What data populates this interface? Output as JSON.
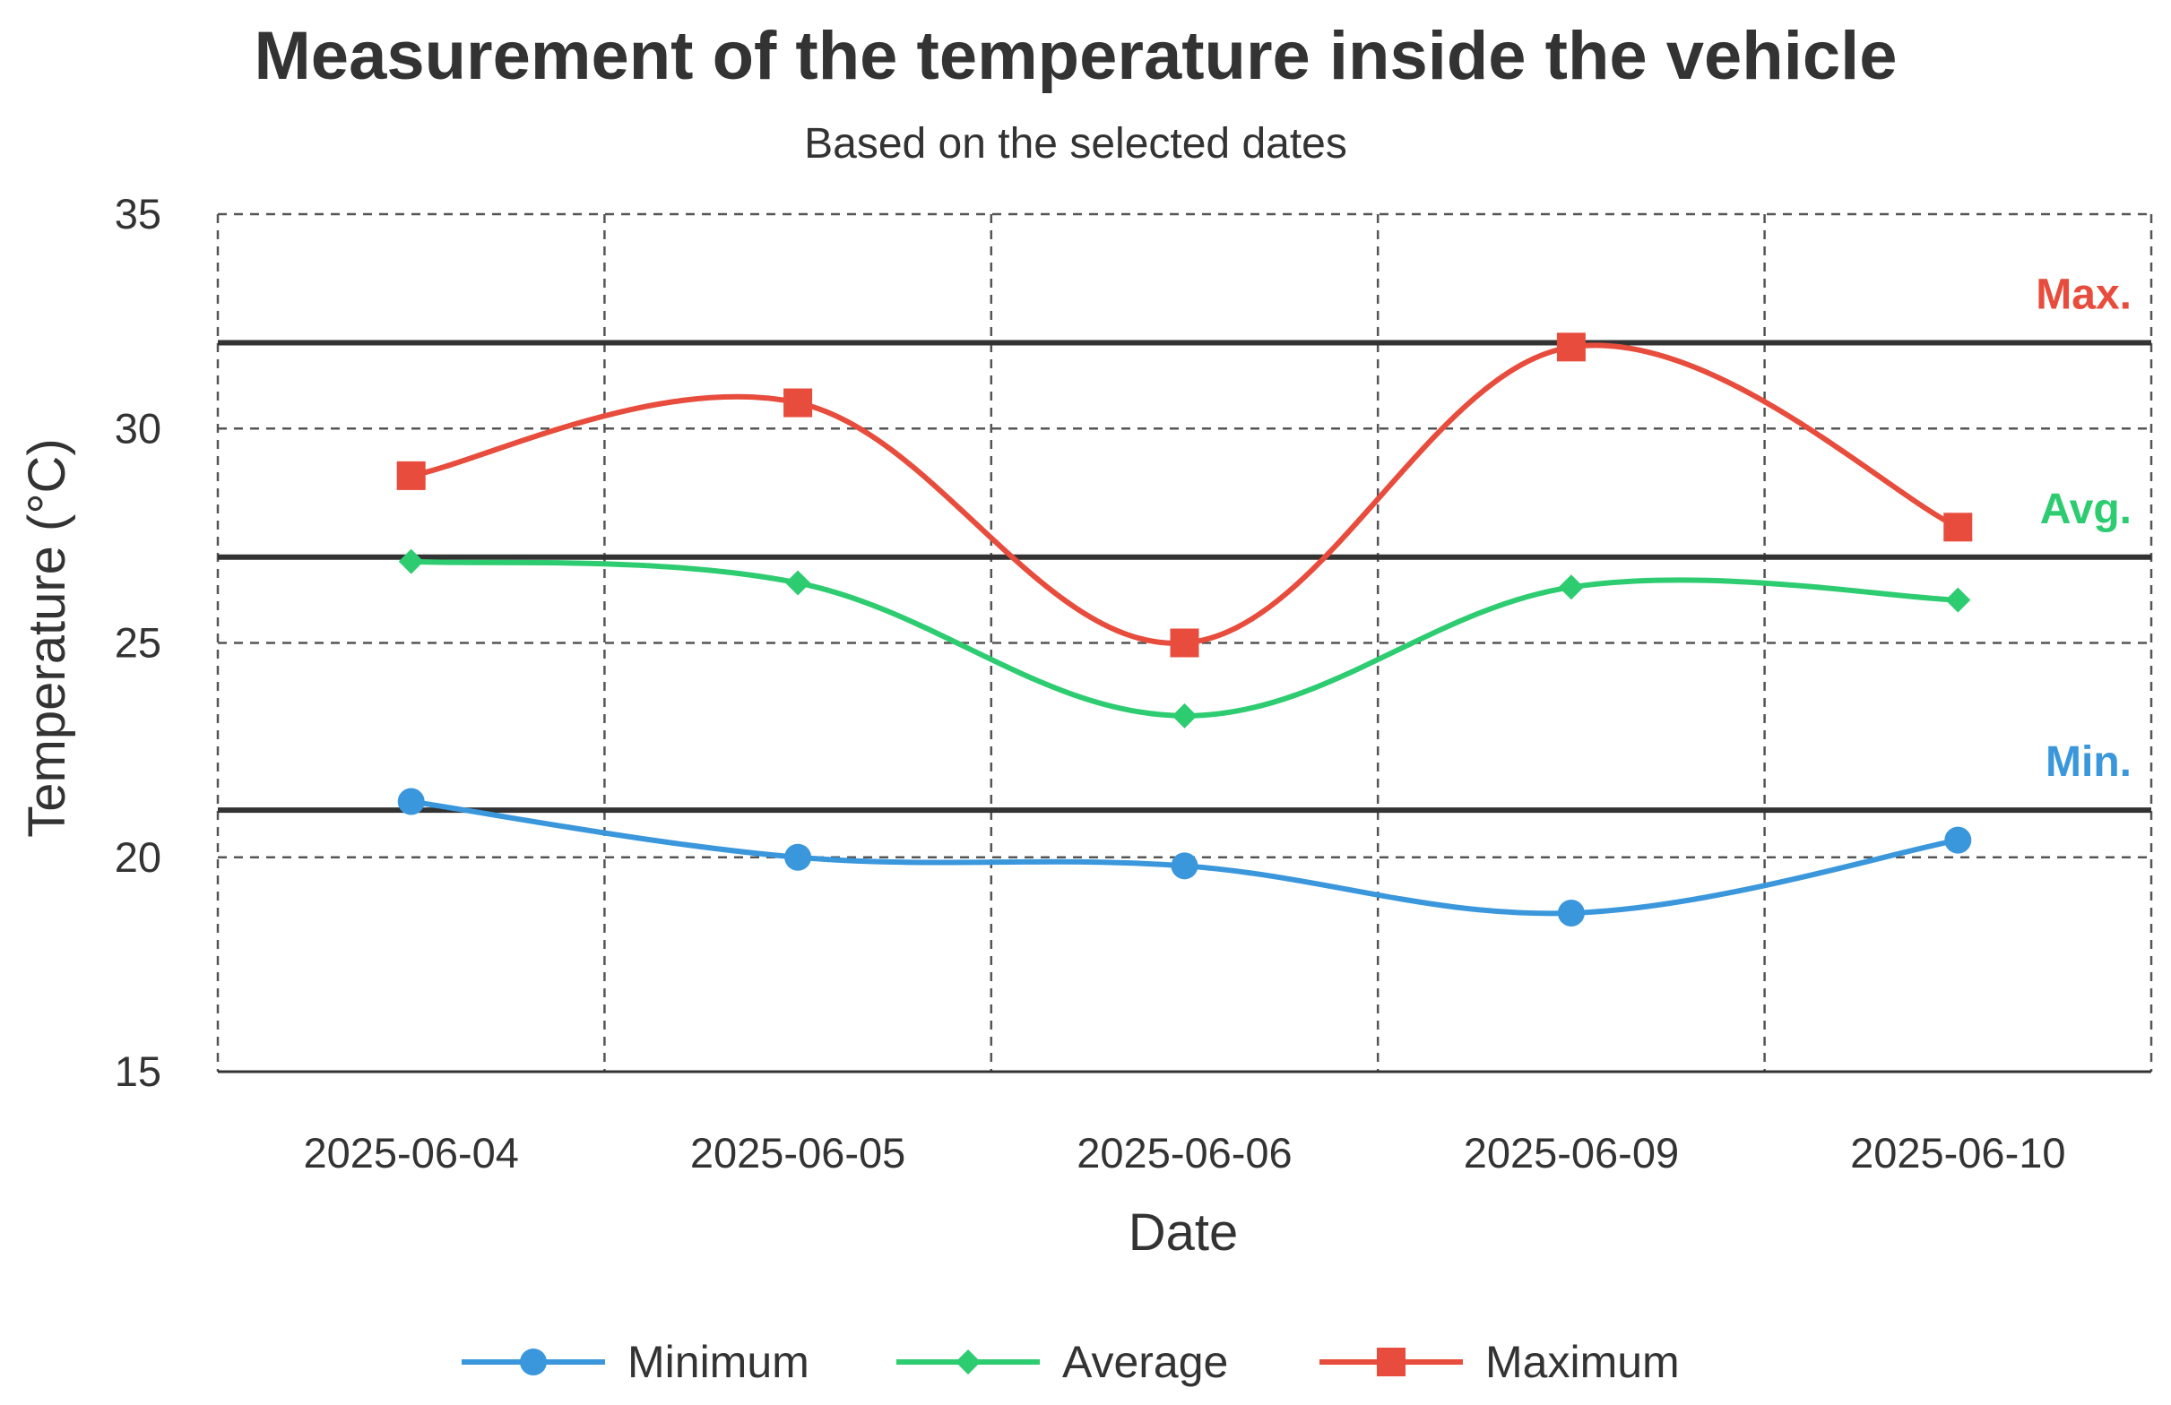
{
  "chart_data": {
    "type": "line",
    "title": "Measurement of the temperature inside the vehicle",
    "subtitle": "Based on the selected dates",
    "xlabel": "Date",
    "ylabel": "Temperature (°C)",
    "categories": [
      "2025-06-04",
      "2025-06-05",
      "2025-06-06",
      "2025-06-09",
      "2025-06-10"
    ],
    "ylim": [
      15,
      35
    ],
    "yticks": [
      15,
      20,
      25,
      30,
      35
    ],
    "grid": true,
    "legend_position": "bottom",
    "series": [
      {
        "name": "Minimum",
        "color": "#3b97dc",
        "marker": "circle",
        "values": [
          21.3,
          20.0,
          19.8,
          18.7,
          20.4
        ]
      },
      {
        "name": "Average",
        "color": "#2ecc71",
        "marker": "diamond",
        "values": [
          26.9,
          26.4,
          23.3,
          26.3,
          26.0
        ]
      },
      {
        "name": "Maximum",
        "color": "#e74c3c",
        "marker": "square",
        "values": [
          28.9,
          30.6,
          25.0,
          31.9,
          27.7
        ]
      }
    ],
    "reference_lines": [
      {
        "label": "Max.",
        "value": 32.0,
        "color": "#e74c3c"
      },
      {
        "label": "Avg.",
        "value": 27.0,
        "color": "#2ecc71"
      },
      {
        "label": "Min.",
        "value": 21.1,
        "color": "#3b97dc"
      }
    ]
  }
}
